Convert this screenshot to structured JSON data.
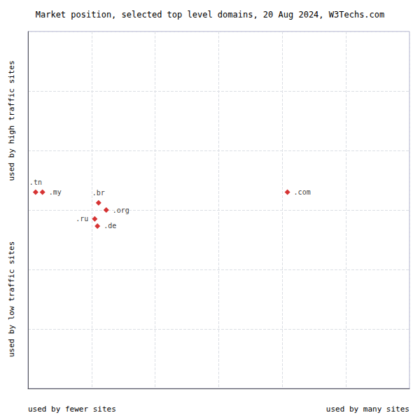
{
  "chart_data": {
    "type": "scatter",
    "title": "Market position, selected top level domains, 20 Aug 2024, W3Techs.com",
    "xlabel_left": "used by fewer sites",
    "xlabel_right": "used by many sites",
    "ylabel_top": "used by high traffic sites",
    "ylabel_bottom": "used by low traffic sites",
    "labels": [
      ".tn",
      ".my",
      ".br",
      ".org",
      ".ru",
      ".de",
      ".com"
    ],
    "x": [
      2.0,
      3.8,
      18.5,
      20.5,
      17.5,
      18.2,
      68.0
    ],
    "values": [
      55.0,
      55.0,
      52.0,
      50.0,
      47.5,
      45.5,
      55.0
    ],
    "color": "#cc0000",
    "marker": "diamond",
    "xlim": [
      0,
      100
    ],
    "ylim": [
      0,
      100
    ],
    "xticks": [
      0,
      16.666666666666668,
      33.333333333333336,
      50,
      66.66666666666667,
      83.33333333333334,
      100
    ],
    "yticks": [
      0,
      16.666666666666668,
      33.333333333333336,
      50,
      66.66666666666667,
      83.33333333333334,
      100
    ],
    "grid": true,
    "tick_labels": false
  }
}
